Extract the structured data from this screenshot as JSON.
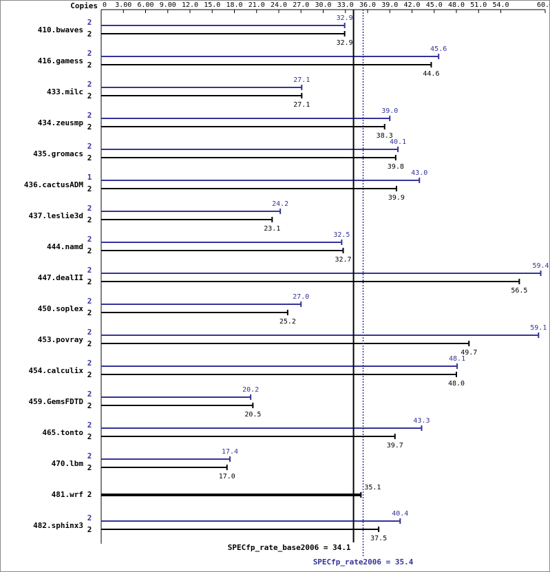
{
  "chart_data": {
    "type": "bar",
    "orientation": "horizontal",
    "copies_label": "Copies",
    "categories": [
      "410.bwaves",
      "416.gamess",
      "433.milc",
      "434.zeusmp",
      "435.gromacs",
      "436.cactusADM",
      "437.leslie3d",
      "444.namd",
      "447.dealII",
      "450.soplex",
      "453.povray",
      "454.calculix",
      "459.GemsFDTD",
      "465.tonto",
      "470.lbm",
      "481.wrf",
      "482.sphinx3"
    ],
    "series": [
      {
        "name": "SPECfp_rate2006",
        "color": "#333399",
        "values": [
          32.9,
          45.6,
          27.1,
          39.0,
          40.1,
          43.0,
          24.2,
          32.5,
          59.4,
          27.0,
          59.1,
          48.1,
          20.2,
          43.3,
          17.4,
          null,
          40.4
        ],
        "value_labels": [
          "32.9",
          "45.6",
          "27.1",
          "39.0",
          "40.1",
          "43.0",
          "24.2",
          "32.5",
          "59.4",
          "27.0",
          "59.1",
          "48.1",
          "20.2",
          "43.3",
          "17.4",
          null,
          "40.4"
        ],
        "copies": [
          2,
          2,
          2,
          2,
          2,
          1,
          2,
          2,
          2,
          2,
          2,
          2,
          2,
          2,
          2,
          null,
          2
        ]
      },
      {
        "name": "SPECfp_rate_base2006",
        "color": "#000000",
        "values": [
          32.9,
          44.6,
          27.1,
          38.3,
          39.8,
          39.9,
          23.1,
          32.7,
          56.5,
          25.2,
          49.7,
          48.0,
          20.5,
          39.7,
          17.0,
          35.1,
          37.5
        ],
        "value_labels": [
          "32.9",
          "44.6",
          "27.1",
          "38.3",
          "39.8",
          "39.9",
          "23.1",
          "32.7",
          "56.5",
          "25.2",
          "49.7",
          "48.0",
          "20.5",
          "39.7",
          "17.0",
          "35.1",
          "37.5"
        ],
        "copies": [
          2,
          2,
          2,
          2,
          2,
          2,
          2,
          2,
          2,
          2,
          2,
          2,
          2,
          2,
          2,
          2,
          2
        ]
      }
    ],
    "xlim": [
      0,
      60
    ],
    "xticks": [
      0,
      {
        "value": 3,
        "label": "3.00"
      },
      {
        "value": 6,
        "label": "6.00"
      },
      {
        "value": 9,
        "label": "9.00"
      },
      {
        "value": 12,
        "label": "12.0"
      },
      {
        "value": 15,
        "label": "15.0"
      },
      {
        "value": 18,
        "label": "18.0"
      },
      {
        "value": 21,
        "label": "21.0"
      },
      {
        "value": 24,
        "label": "24.0"
      },
      {
        "value": 27,
        "label": "27.0"
      },
      {
        "value": 30,
        "label": "30.0"
      },
      {
        "value": 33,
        "label": "33.0"
      },
      {
        "value": 36,
        "label": "36.0"
      },
      {
        "value": 39,
        "label": "39.0"
      },
      {
        "value": 42,
        "label": "42.0"
      },
      {
        "value": 45,
        "label": "45.0"
      },
      {
        "value": 48,
        "label": "48.0"
      },
      {
        "value": 51,
        "label": "51.0"
      },
      {
        "value": 54,
        "label": "54.0"
      },
      {
        "value": 60,
        "label": "60.0"
      }
    ],
    "reference_lines": [
      {
        "value": 34.1,
        "label": "SPECfp_rate_base2006 = 34.1",
        "color": "#000000",
        "style": "solid"
      },
      {
        "value": 35.4,
        "label": "SPECfp_rate2006 = 35.4",
        "color": "#333399",
        "style": "dotted"
      }
    ]
  }
}
